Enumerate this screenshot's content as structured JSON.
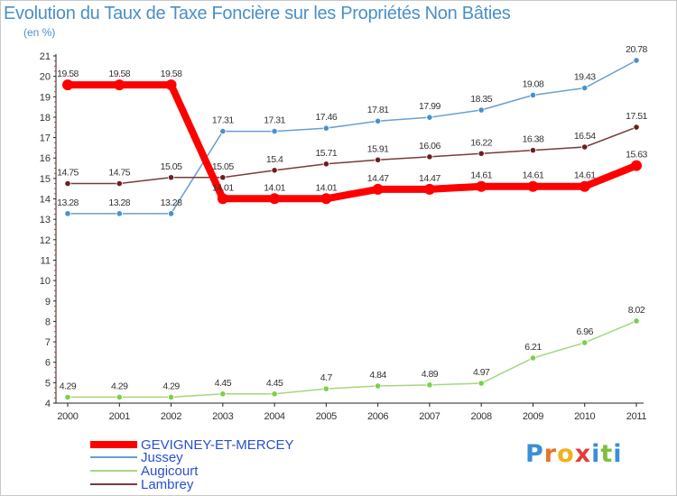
{
  "chart_data": {
    "type": "line",
    "title": "Evolution du Taux de Taxe Foncière sur les Propriétés Non Bâties",
    "ylabel": "(en %)",
    "xlabel": "",
    "x": [
      "2000",
      "2001",
      "2002",
      "2003",
      "2004",
      "2005",
      "2006",
      "2007",
      "2008",
      "2009",
      "2010",
      "2011"
    ],
    "ylim": [
      4,
      21
    ],
    "yticks": [
      "4",
      "5",
      "6",
      "7",
      "8",
      "9",
      "10",
      "11",
      "12",
      "13",
      "14",
      "15",
      "16",
      "17",
      "18",
      "19",
      "20",
      "21"
    ],
    "grid": false,
    "legend_position": "bottom-left",
    "series": [
      {
        "name": "GEVIGNEY-ET-MERCEY",
        "color": "#ff0000",
        "values": [
          19.58,
          19.58,
          19.58,
          14.01,
          14.01,
          14.01,
          14.47,
          14.47,
          14.61,
          14.61,
          14.61,
          15.63
        ],
        "labels": [
          "19.58",
          "19.58",
          "19.58",
          "14.01",
          "14.01",
          "14.01",
          "14.47",
          "14.47",
          "14.61",
          "14.61",
          "14.61",
          "15.63"
        ]
      },
      {
        "name": "Jussey",
        "color": "#6a9fd0",
        "values": [
          13.28,
          13.28,
          13.28,
          17.31,
          17.31,
          17.46,
          17.81,
          17.99,
          18.35,
          19.08,
          19.43,
          20.78
        ],
        "labels": [
          "13.28",
          "13.28",
          "13.28",
          "17.31",
          "17.31",
          "17.46",
          "17.81",
          "17.99",
          "18.35",
          "19.08",
          "19.43",
          "20.78"
        ]
      },
      {
        "name": "Augicourt",
        "color": "#a6d67e",
        "values": [
          4.29,
          4.29,
          4.29,
          4.45,
          4.45,
          4.7,
          4.84,
          4.89,
          4.97,
          6.21,
          6.96,
          8.02
        ],
        "labels": [
          "4.29",
          "4.29",
          "4.29",
          "4.45",
          "4.45",
          "4.7",
          "4.84",
          "4.89",
          "4.97",
          "6.21",
          "6.96",
          "8.02"
        ]
      },
      {
        "name": "Lambrey",
        "color": "#7a3a3a",
        "values": [
          14.75,
          14.75,
          15.05,
          15.05,
          15.4,
          15.71,
          15.91,
          16.06,
          16.22,
          16.38,
          16.54,
          17.51
        ],
        "labels": [
          "14.75",
          "14.75",
          "15.05",
          "15.05",
          "15.4",
          "15.71",
          "15.91",
          "16.06",
          "16.22",
          "16.38",
          "16.54",
          "17.51"
        ]
      }
    ]
  },
  "logo": {
    "letters": [
      "P",
      "r",
      "o",
      "x",
      "i",
      "t",
      "i"
    ]
  }
}
